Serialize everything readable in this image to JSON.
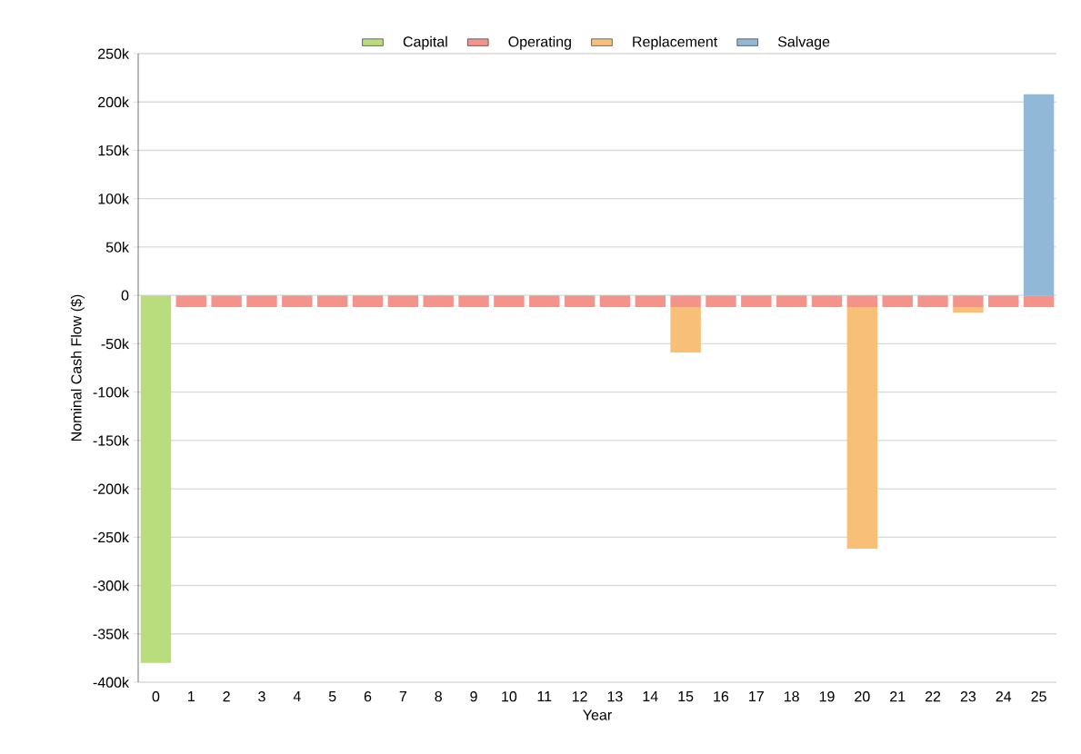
{
  "chart_data": {
    "type": "bar",
    "stacked": true,
    "xlabel": "Year",
    "ylabel": "Nominal Cash Flow ($)",
    "categories": [
      "0",
      "1",
      "2",
      "3",
      "4",
      "5",
      "6",
      "7",
      "8",
      "9",
      "10",
      "11",
      "12",
      "13",
      "14",
      "15",
      "16",
      "17",
      "18",
      "19",
      "20",
      "21",
      "22",
      "23",
      "24",
      "25"
    ],
    "series": [
      {
        "name": "Capital",
        "color": "#b9dc7c",
        "values": [
          -380000,
          0,
          0,
          0,
          0,
          0,
          0,
          0,
          0,
          0,
          0,
          0,
          0,
          0,
          0,
          0,
          0,
          0,
          0,
          0,
          0,
          0,
          0,
          0,
          0,
          0
        ]
      },
      {
        "name": "Operating",
        "color": "#f4938a",
        "values": [
          0,
          -12000,
          -12000,
          -12000,
          -12000,
          -12000,
          -12000,
          -12000,
          -12000,
          -12000,
          -12000,
          -12000,
          -12000,
          -12000,
          -12000,
          -12000,
          -12000,
          -12000,
          -12000,
          -12000,
          -12000,
          -12000,
          -12000,
          -12000,
          -12000,
          -12000
        ]
      },
      {
        "name": "Replacement",
        "color": "#f8bf78",
        "values": [
          0,
          0,
          0,
          0,
          0,
          0,
          0,
          0,
          0,
          0,
          0,
          0,
          0,
          0,
          0,
          -47000,
          0,
          0,
          0,
          0,
          -250000,
          0,
          0,
          -6000,
          0,
          0
        ]
      },
      {
        "name": "Salvage",
        "color": "#92b8d8",
        "values": [
          0,
          0,
          0,
          0,
          0,
          0,
          0,
          0,
          0,
          0,
          0,
          0,
          0,
          0,
          0,
          0,
          0,
          0,
          0,
          0,
          0,
          0,
          0,
          0,
          0,
          208000
        ]
      }
    ],
    "ylim": [
      -400000,
      250000
    ],
    "yticks": [
      {
        "value": -400000,
        "label": "-400k"
      },
      {
        "value": -350000,
        "label": "-350k"
      },
      {
        "value": -300000,
        "label": "-300k"
      },
      {
        "value": -250000,
        "label": "-250k"
      },
      {
        "value": -200000,
        "label": "-200k"
      },
      {
        "value": -150000,
        "label": "-150k"
      },
      {
        "value": -100000,
        "label": "-100k"
      },
      {
        "value": -50000,
        "label": "-50k"
      },
      {
        "value": 0,
        "label": "0"
      },
      {
        "value": 50000,
        "label": "50k"
      },
      {
        "value": 100000,
        "label": "100k"
      },
      {
        "value": 150000,
        "label": "150k"
      },
      {
        "value": 200000,
        "label": "200k"
      },
      {
        "value": 250000,
        "label": "250k"
      }
    ],
    "grid": "y",
    "legend": "top"
  }
}
